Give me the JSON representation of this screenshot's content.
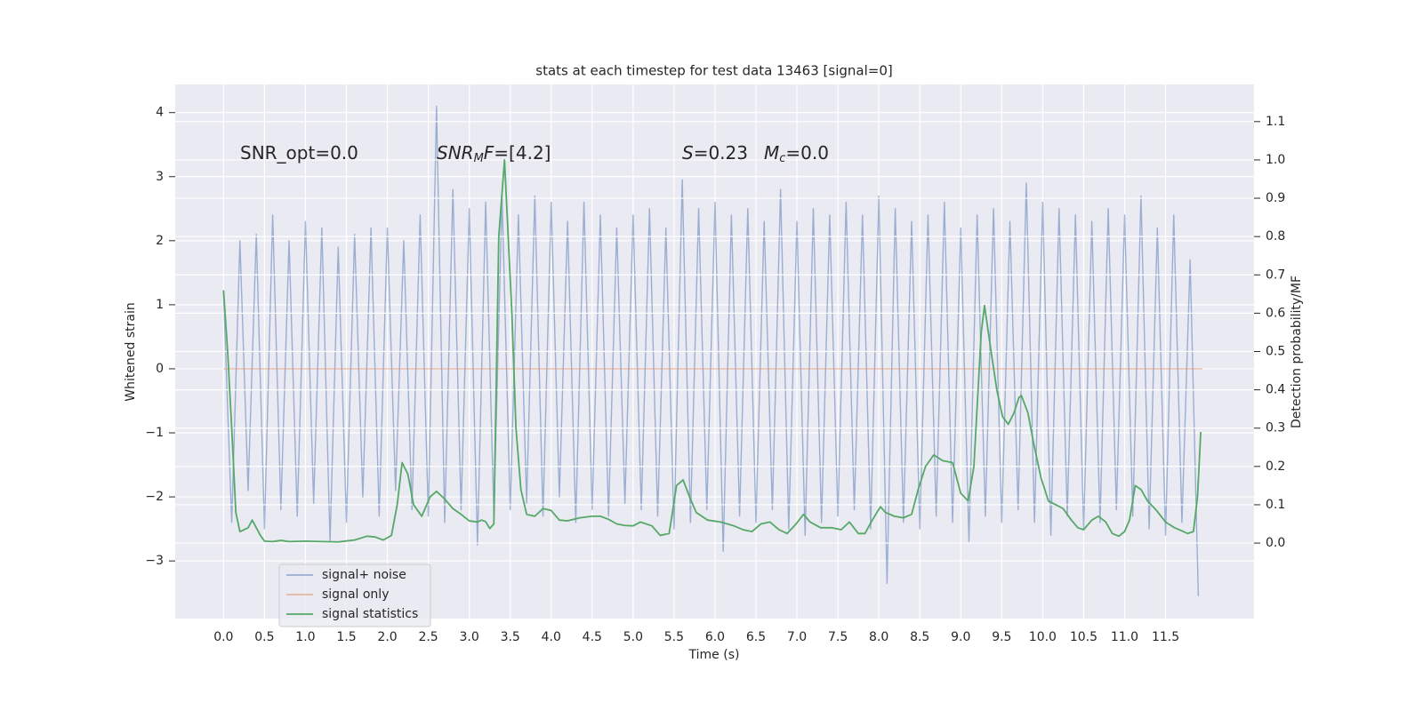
{
  "chart_data": {
    "type": "line",
    "title": "stats at each timestep for test data 13463 [signal=0]",
    "x_label": "Time (s)",
    "y_label": "Whitened strain",
    "y2_label": "Detection probability/MF",
    "xlim": [
      -0.59,
      12.58
    ],
    "ylim": [
      -3.9,
      4.44
    ],
    "y2lim": [
      -0.197,
      1.197
    ],
    "xticks": [
      {
        "value": 0,
        "label": "0.0"
      },
      0.5,
      {
        "value": 1,
        "label": "1.0"
      },
      1.5,
      {
        "value": 2,
        "label": "2.0"
      },
      2.5,
      {
        "value": 3,
        "label": "3.0"
      },
      3.5,
      {
        "value": 4,
        "label": "4.0"
      },
      4.5,
      {
        "value": 5,
        "label": "5.0"
      },
      5.5,
      {
        "value": 6,
        "label": "6.0"
      },
      6.5,
      {
        "value": 7,
        "label": "7.0"
      },
      7.5,
      {
        "value": 8,
        "label": "8.0"
      },
      8.5,
      {
        "value": 9,
        "label": "9.0"
      },
      9.5,
      {
        "value": 10,
        "label": "10.0"
      },
      10.5,
      {
        "value": 11,
        "label": "11.0"
      },
      11.5
    ],
    "yticks": [
      {
        "value": -3,
        "label": "−3"
      },
      {
        "value": -2,
        "label": "−2"
      },
      {
        "value": -1,
        "label": "−1"
      },
      0,
      1,
      2,
      3,
      4
    ],
    "y2ticks": [
      {
        "value": 0,
        "label": "0.0"
      },
      0.1,
      0.2,
      0.3,
      0.4,
      0.5,
      0.6,
      0.7,
      0.8,
      0.9,
      {
        "value": 1,
        "label": "1.0"
      },
      1.1
    ],
    "grid": true,
    "legend": "lower left",
    "annotations": [
      [
        {
          "text": "SNR_opt=0.0",
          "style": "normal"
        }
      ],
      [
        {
          "text": "SNR",
          "style": "italic"
        },
        {
          "text": "M",
          "style": "sub"
        },
        {
          "text": "F",
          "style": "italic"
        },
        {
          "text": "=[4.2]",
          "style": "normal"
        }
      ],
      [
        {
          "text": "S",
          "style": "italic"
        },
        {
          "text": "=0.23",
          "style": "normal"
        }
      ],
      [
        {
          "text": "M",
          "style": "italic"
        },
        {
          "text": "c",
          "style": "sub"
        },
        {
          "text": "=0.0",
          "style": "normal"
        }
      ]
    ],
    "series": [
      {
        "name": "signal+ noise",
        "color": "#4c72b0",
        "alpha": 0.5,
        "axis": "y",
        "x": [
          0.0,
          0.1,
          0.2,
          0.3,
          0.4,
          0.5,
          0.6,
          0.7,
          0.8,
          0.9,
          1.0,
          1.1,
          1.2,
          1.3,
          1.4,
          1.5,
          1.6,
          1.7,
          1.8,
          1.9,
          2.0,
          2.1,
          2.2,
          2.3,
          2.4,
          2.5,
          2.6,
          2.7,
          2.8,
          2.9,
          3.0,
          3.1,
          3.2,
          3.3,
          3.4,
          3.5,
          3.6,
          3.7,
          3.8,
          3.9,
          4.0,
          4.1,
          4.2,
          4.3,
          4.4,
          4.5,
          4.6,
          4.7,
          4.8,
          4.9,
          5.0,
          5.1,
          5.2,
          5.3,
          5.4,
          5.5,
          5.6,
          5.7,
          5.8,
          5.9,
          6.0,
          6.1,
          6.2,
          6.3,
          6.4,
          6.5,
          6.6,
          6.7,
          6.8,
          6.9,
          7.0,
          7.1,
          7.2,
          7.3,
          7.4,
          7.5,
          7.6,
          7.7,
          7.8,
          7.9,
          8.0,
          8.1,
          8.2,
          8.3,
          8.4,
          8.5,
          8.6,
          8.7,
          8.8,
          8.9,
          9.0,
          9.1,
          9.2,
          9.3,
          9.4,
          9.5,
          9.6,
          9.7,
          9.8,
          9.9,
          10.0,
          10.1,
          10.2,
          10.3,
          10.4,
          10.5,
          10.6,
          10.7,
          10.8,
          10.9,
          11.0,
          11.1,
          11.2,
          11.3,
          11.4,
          11.5,
          11.6,
          11.7,
          11.8,
          11.9
        ],
        "values": [
          1.2,
          -2.4,
          2.0,
          -1.9,
          2.1,
          -2.5,
          2.4,
          -2.2,
          2.0,
          -2.3,
          2.3,
          -2.1,
          2.2,
          -2.7,
          1.9,
          -2.4,
          2.1,
          -2.0,
          2.2,
          -2.3,
          2.2,
          -1.9,
          2.0,
          -2.2,
          2.4,
          -2.3,
          4.1,
          -2.4,
          2.8,
          -2.2,
          2.5,
          -2.75,
          2.6,
          -2.3,
          2.7,
          -2.2,
          2.4,
          -2.1,
          2.7,
          -2.3,
          2.6,
          -2.0,
          2.3,
          -2.4,
          2.6,
          -2.2,
          2.4,
          -2.3,
          2.2,
          -2.1,
          2.4,
          -2.2,
          2.5,
          -2.3,
          2.2,
          -2.5,
          2.95,
          -2.4,
          2.5,
          -2.2,
          2.6,
          -2.85,
          2.4,
          -2.3,
          2.5,
          -2.4,
          2.3,
          -2.2,
          2.8,
          -2.5,
          2.3,
          -2.6,
          2.5,
          -2.4,
          2.4,
          -2.3,
          2.6,
          -2.2,
          2.4,
          -2.5,
          2.7,
          -3.35,
          2.5,
          -2.4,
          2.3,
          -2.5,
          2.4,
          -2.3,
          2.6,
          -2.4,
          2.2,
          -2.7,
          2.4,
          -2.3,
          2.5,
          -2.4,
          2.3,
          -2.2,
          2.9,
          -2.4,
          2.6,
          -2.6,
          2.5,
          -2.3,
          2.4,
          -2.5,
          2.3,
          -2.4,
          2.5,
          -2.2,
          2.4,
          -2.3,
          2.7,
          -2.5,
          2.2,
          -2.6,
          2.4,
          -2.4,
          1.7,
          -3.55
        ]
      },
      {
        "name": "signal only",
        "color": "#dd8452",
        "alpha": 0.5,
        "axis": "y",
        "x": [
          0.0,
          11.95
        ],
        "values": [
          0,
          0
        ]
      },
      {
        "name": "signal statistics",
        "color": "#55a868",
        "alpha": 1,
        "axis": "y2",
        "x": [
          0.0,
          0.05,
          0.1,
          0.15,
          0.2,
          0.3,
          0.35,
          0.45,
          0.5,
          0.6,
          0.7,
          0.8,
          1.0,
          1.2,
          1.4,
          1.6,
          1.75,
          1.85,
          1.95,
          2.05,
          2.12,
          2.18,
          2.25,
          2.32,
          2.42,
          2.52,
          2.6,
          2.7,
          2.8,
          2.9,
          3.0,
          3.1,
          3.15,
          3.2,
          3.25,
          3.3,
          3.36,
          3.43,
          3.52,
          3.57,
          3.63,
          3.7,
          3.8,
          3.9,
          4.0,
          4.1,
          4.2,
          4.35,
          4.5,
          4.6,
          4.7,
          4.8,
          4.9,
          5.0,
          5.09,
          5.23,
          5.33,
          5.44,
          5.53,
          5.61,
          5.69,
          5.77,
          5.91,
          6.07,
          6.23,
          6.34,
          6.45,
          6.56,
          6.67,
          6.78,
          6.88,
          6.99,
          7.08,
          7.16,
          7.29,
          7.43,
          7.54,
          7.64,
          7.75,
          7.83,
          7.92,
          8.02,
          8.08,
          8.19,
          8.3,
          8.4,
          8.48,
          8.57,
          8.67,
          8.78,
          8.9,
          9.0,
          9.09,
          9.16,
          9.25,
          9.29,
          9.37,
          9.44,
          9.51,
          9.58,
          9.65,
          9.71,
          9.74,
          9.82,
          9.89,
          9.98,
          10.07,
          10.16,
          10.25,
          10.35,
          10.43,
          10.5,
          10.6,
          10.68,
          10.77,
          10.85,
          10.93,
          11.0,
          11.06,
          11.13,
          11.2,
          11.28,
          11.39,
          11.5,
          11.61,
          11.72,
          11.77,
          11.84,
          11.89,
          11.93
        ],
        "values": [
          0.66,
          0.5,
          0.3,
          0.08,
          0.03,
          0.04,
          0.06,
          0.02,
          0.005,
          0.004,
          0.007,
          0.004,
          0.005,
          0.004,
          0.003,
          0.008,
          0.018,
          0.016,
          0.008,
          0.02,
          0.1,
          0.21,
          0.18,
          0.1,
          0.07,
          0.12,
          0.135,
          0.115,
          0.09,
          0.075,
          0.058,
          0.055,
          0.06,
          0.056,
          0.038,
          0.05,
          0.8,
          1.0,
          0.6,
          0.3,
          0.14,
          0.075,
          0.07,
          0.09,
          0.085,
          0.06,
          0.058,
          0.066,
          0.07,
          0.07,
          0.062,
          0.05,
          0.046,
          0.045,
          0.055,
          0.045,
          0.02,
          0.025,
          0.15,
          0.165,
          0.12,
          0.08,
          0.06,
          0.055,
          0.045,
          0.035,
          0.03,
          0.05,
          0.055,
          0.035,
          0.025,
          0.05,
          0.075,
          0.055,
          0.04,
          0.04,
          0.035,
          0.055,
          0.025,
          0.025,
          0.06,
          0.095,
          0.08,
          0.07,
          0.066,
          0.075,
          0.14,
          0.2,
          0.23,
          0.215,
          0.21,
          0.13,
          0.11,
          0.2,
          0.55,
          0.62,
          0.5,
          0.4,
          0.33,
          0.31,
          0.34,
          0.38,
          0.385,
          0.34,
          0.26,
          0.17,
          0.11,
          0.1,
          0.09,
          0.06,
          0.04,
          0.035,
          0.06,
          0.07,
          0.055,
          0.025,
          0.018,
          0.03,
          0.06,
          0.15,
          0.14,
          0.11,
          0.085,
          0.055,
          0.04,
          0.03,
          0.025,
          0.03,
          0.12,
          0.29
        ]
      }
    ]
  }
}
